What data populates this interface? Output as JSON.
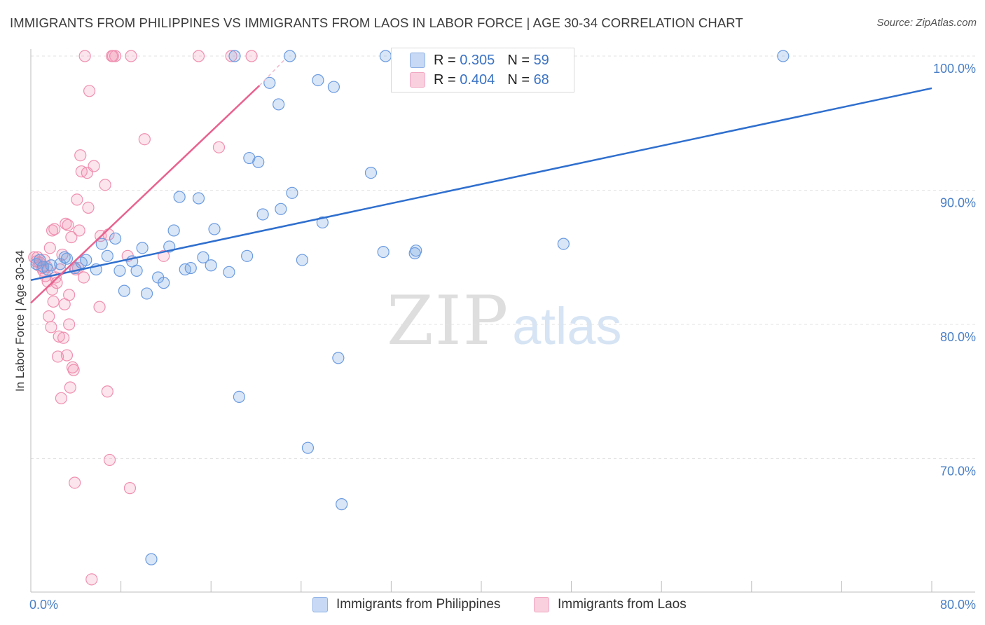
{
  "title": "IMMIGRANTS FROM PHILIPPINES VS IMMIGRANTS FROM LAOS IN LABOR FORCE | AGE 30-34 CORRELATION CHART",
  "source": "Source: ZipAtlas.com",
  "watermark": {
    "zip": "ZIP",
    "atlas": "atlas"
  },
  "legend": {
    "rows": [
      {
        "r_label": "R = ",
        "r_value": "0.305",
        "n_label": "N = ",
        "n_value": "59",
        "color": "#a9c5ee"
      },
      {
        "r_label": "R = ",
        "r_value": "0.404",
        "n_label": "N = ",
        "n_value": "68",
        "color": "#f6bdd0"
      }
    ]
  },
  "bottom_legend": [
    {
      "label": "Immigrants from Philippines",
      "color": "#a9c5ee"
    },
    {
      "label": "Immigrants from Laos",
      "color": "#f6bdd0"
    }
  ],
  "chart_data": {
    "type": "scatter",
    "ylabel": "In Labor Force | Age 30-34",
    "xlim": [
      0,
      80
    ],
    "ylim": [
      61.5,
      101.5
    ],
    "x_tick_labels": [
      "0.0%",
      "80.0%"
    ],
    "y_ticks": [
      {
        "value": 100,
        "label": "100.0%"
      },
      {
        "value": 90,
        "label": "90.0%"
      },
      {
        "value": 80,
        "label": "80.0%"
      },
      {
        "value": 70,
        "label": "70.0%"
      }
    ],
    "grid": true,
    "colors": {
      "blue": "#2f6fce",
      "pink": "#e8628f"
    },
    "series": [
      {
        "name": "Immigrants from Philippines",
        "color": "#6b9be0",
        "points": [
          [
            0.5,
            84.5
          ],
          [
            0.8,
            84.8
          ],
          [
            1.1,
            84.3
          ],
          [
            1.5,
            84.1
          ],
          [
            1.8,
            84.4
          ],
          [
            2.6,
            84.5
          ],
          [
            3.0,
            85.0
          ],
          [
            3.2,
            84.9
          ],
          [
            3.9,
            84.2
          ],
          [
            4.5,
            84.6
          ],
          [
            4.9,
            84.8
          ],
          [
            5.8,
            84.1
          ],
          [
            6.3,
            86.0
          ],
          [
            6.8,
            85.1
          ],
          [
            7.5,
            86.4
          ],
          [
            7.9,
            84.0
          ],
          [
            8.3,
            82.5
          ],
          [
            9.0,
            84.7
          ],
          [
            9.4,
            84.0
          ],
          [
            9.9,
            85.7
          ],
          [
            10.3,
            82.3
          ],
          [
            11.3,
            83.5
          ],
          [
            11.8,
            83.1
          ],
          [
            12.3,
            85.8
          ],
          [
            12.7,
            87.0
          ],
          [
            13.2,
            89.5
          ],
          [
            13.7,
            84.1
          ],
          [
            14.2,
            84.2
          ],
          [
            14.9,
            89.4
          ],
          [
            15.3,
            85.0
          ],
          [
            16.0,
            84.4
          ],
          [
            16.3,
            87.1
          ],
          [
            17.6,
            83.9
          ],
          [
            18.1,
            100.0
          ],
          [
            18.5,
            74.6
          ],
          [
            19.2,
            85.1
          ],
          [
            19.4,
            92.4
          ],
          [
            20.2,
            92.1
          ],
          [
            20.6,
            88.2
          ],
          [
            21.2,
            98.0
          ],
          [
            22.0,
            96.4
          ],
          [
            22.2,
            88.6
          ],
          [
            23.0,
            100.0
          ],
          [
            23.2,
            89.8
          ],
          [
            24.1,
            84.8
          ],
          [
            24.6,
            70.8
          ],
          [
            25.5,
            98.2
          ],
          [
            25.9,
            87.6
          ],
          [
            26.9,
            97.7
          ],
          [
            27.3,
            77.5
          ],
          [
            27.6,
            66.6
          ],
          [
            30.2,
            91.3
          ],
          [
            31.3,
            85.4
          ],
          [
            31.5,
            100.0
          ],
          [
            34.1,
            85.3
          ],
          [
            34.2,
            85.5
          ],
          [
            47.3,
            86.0
          ],
          [
            66.8,
            100.0
          ],
          [
            10.7,
            62.5
          ]
        ]
      },
      {
        "name": "Immigrants from Laos",
        "color": "#ef8fb0",
        "points": [
          [
            0.3,
            85.0
          ],
          [
            0.5,
            84.7
          ],
          [
            0.6,
            85.0
          ],
          [
            0.7,
            84.4
          ],
          [
            0.8,
            84.6
          ],
          [
            1.0,
            84.2
          ],
          [
            1.1,
            84.0
          ],
          [
            1.2,
            84.8
          ],
          [
            1.3,
            83.6
          ],
          [
            1.4,
            84.3
          ],
          [
            1.5,
            83.2
          ],
          [
            1.6,
            80.6
          ],
          [
            1.7,
            85.7
          ],
          [
            1.8,
            79.8
          ],
          [
            1.9,
            82.6
          ],
          [
            1.9,
            87.0
          ],
          [
            2.0,
            81.7
          ],
          [
            2.1,
            87.1
          ],
          [
            2.2,
            83.5
          ],
          [
            2.3,
            83.1
          ],
          [
            2.4,
            77.6
          ],
          [
            2.5,
            79.1
          ],
          [
            2.6,
            84.1
          ],
          [
            2.7,
            74.5
          ],
          [
            2.8,
            85.2
          ],
          [
            2.9,
            79.0
          ],
          [
            3.0,
            81.5
          ],
          [
            3.1,
            87.5
          ],
          [
            3.2,
            77.7
          ],
          [
            3.3,
            87.4
          ],
          [
            3.4,
            80.0
          ],
          [
            3.4,
            82.2
          ],
          [
            3.5,
            75.3
          ],
          [
            3.6,
            86.5
          ],
          [
            3.7,
            76.8
          ],
          [
            3.8,
            76.6
          ],
          [
            3.9,
            68.2
          ],
          [
            4.0,
            84.1
          ],
          [
            4.1,
            89.3
          ],
          [
            4.2,
            84.2
          ],
          [
            4.3,
            87.0
          ],
          [
            4.4,
            92.6
          ],
          [
            4.5,
            91.4
          ],
          [
            4.7,
            83.5
          ],
          [
            4.8,
            100.0
          ],
          [
            5.0,
            91.3
          ],
          [
            5.1,
            88.7
          ],
          [
            5.2,
            97.4
          ],
          [
            5.4,
            61.0
          ],
          [
            5.6,
            91.8
          ],
          [
            6.1,
            81.3
          ],
          [
            6.2,
            86.6
          ],
          [
            6.6,
            90.4
          ],
          [
            6.8,
            75.0
          ],
          [
            6.9,
            86.7
          ],
          [
            7.0,
            69.9
          ],
          [
            7.2,
            100.0
          ],
          [
            7.3,
            100.0
          ],
          [
            7.5,
            100.0
          ],
          [
            8.6,
            85.1
          ],
          [
            8.8,
            67.8
          ],
          [
            8.9,
            100.0
          ],
          [
            10.1,
            93.8
          ],
          [
            11.8,
            85.1
          ],
          [
            14.9,
            100.0
          ],
          [
            16.7,
            93.2
          ],
          [
            17.8,
            100.0
          ],
          [
            19.6,
            100.0
          ]
        ]
      }
    ],
    "trend_lines": [
      {
        "series": "Immigrants from Philippines",
        "from": [
          0,
          83.3
        ],
        "to": [
          80,
          97.6
        ],
        "color": "#2f6fce"
      },
      {
        "series": "Immigrants from Laos",
        "from": [
          0,
          81.6
        ],
        "to": [
          20.3,
          97.8
        ],
        "extend_to": [
          22.5,
          99.7
        ],
        "color": "#e8628f"
      }
    ]
  }
}
